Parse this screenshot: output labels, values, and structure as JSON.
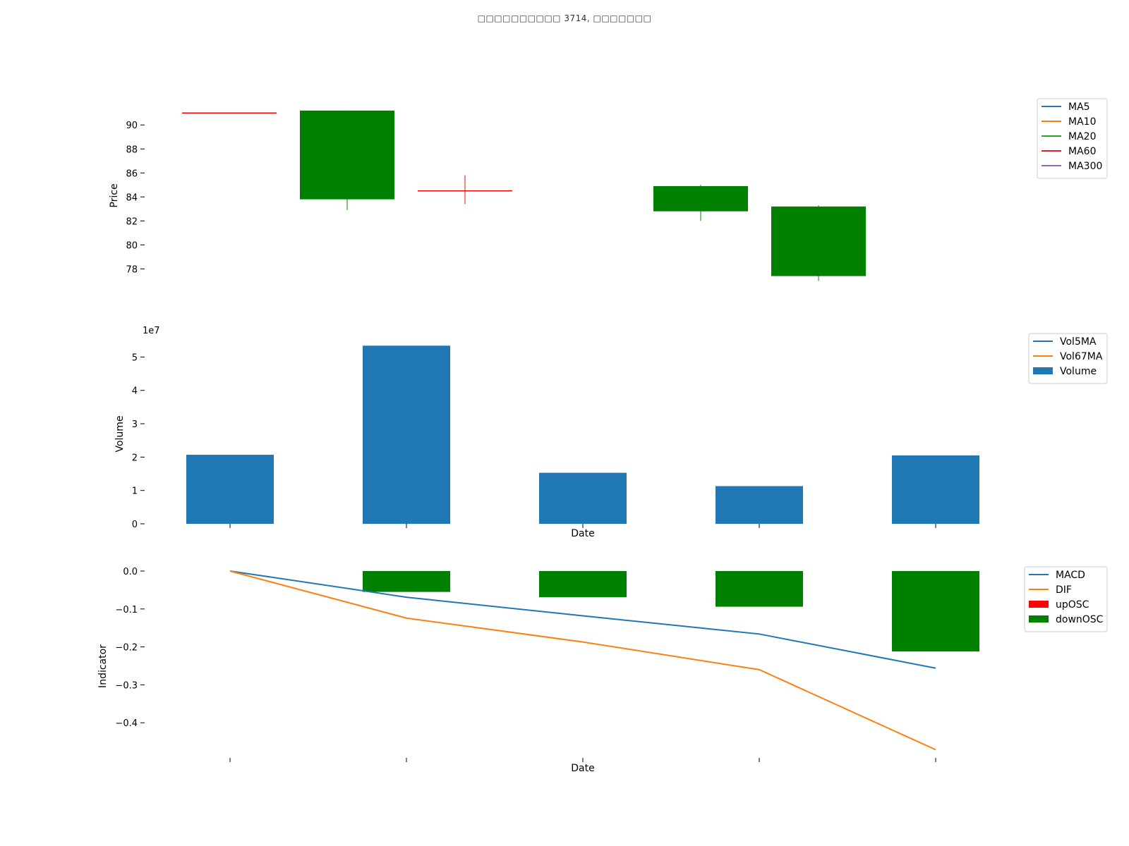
{
  "title": "□□□□□□□□□□ 3714, □□□□□□□",
  "chart_data": [
    {
      "type": "candlestick",
      "ylabel": "Price",
      "yticks": [
        78,
        80,
        82,
        84,
        86,
        88,
        90
      ],
      "ylim": [
        76.2,
        92.6
      ],
      "grid": false,
      "legend_position": "top-right",
      "legend": [
        {
          "name": "MA5",
          "color": "#1f77b4"
        },
        {
          "name": "MA10",
          "color": "#ff7f0e"
        },
        {
          "name": "MA20",
          "color": "#2ca02c"
        },
        {
          "name": "MA60",
          "color": "#d62728"
        },
        {
          "name": "MA300",
          "color": "#9467bd"
        }
      ],
      "candles": [
        {
          "open": 91.0,
          "close": 91.0,
          "high": 91.0,
          "low": 91.0,
          "color": "#ff0000"
        },
        {
          "open": 91.2,
          "close": 83.8,
          "high": 91.2,
          "low": 82.9,
          "color": "#008000"
        },
        {
          "open": 84.5,
          "close": 84.5,
          "high": 85.8,
          "low": 83.4,
          "color": "#ff0000"
        },
        {
          "open": null,
          "close": null,
          "high": null,
          "low": null,
          "color": null
        },
        {
          "open": 84.9,
          "close": 82.8,
          "high": 85.0,
          "low": 82.0,
          "color": "#008000"
        },
        {
          "open": 83.2,
          "close": 77.4,
          "high": 83.3,
          "low": 77.0,
          "color": "#008000"
        }
      ]
    },
    {
      "type": "bar",
      "ylabel": "Volume",
      "xlabel": "Date",
      "offset_text": "1e7",
      "yticks": [
        0,
        1,
        2,
        3,
        4,
        5
      ],
      "ylim": [
        0,
        5.6
      ],
      "grid": false,
      "legend_position": "top-right",
      "legend": [
        {
          "name": "Vol5MA",
          "color": "#1f77b4",
          "kind": "line"
        },
        {
          "name": "Vol67MA",
          "color": "#ff7f0e",
          "kind": "line"
        },
        {
          "name": "Volume",
          "color": "#1f77b4",
          "kind": "patch"
        }
      ],
      "values": [
        2.07,
        5.34,
        1.53,
        1.13,
        2.05
      ]
    },
    {
      "type": "line",
      "ylabel": "Indicator",
      "xlabel": "Date",
      "yticks": [
        "0.0",
        "−0.1",
        "−0.2",
        "−0.3",
        "−0.4"
      ],
      "yticks_values": [
        0.0,
        -0.1,
        -0.2,
        -0.3,
        -0.4
      ],
      "ylim": [
        -0.495,
        0.025
      ],
      "grid": false,
      "legend_position": "top-right",
      "legend": [
        {
          "name": "MACD",
          "color": "#1f77b4",
          "kind": "line"
        },
        {
          "name": "DIF",
          "color": "#ff7f0e",
          "kind": "line"
        },
        {
          "name": "upOSC",
          "color": "#ff0000",
          "kind": "patch"
        },
        {
          "name": "downOSC",
          "color": "#008000",
          "kind": "patch"
        }
      ],
      "series": [
        {
          "name": "MACD",
          "values": [
            0.0,
            -0.069,
            -0.118,
            -0.166,
            -0.256
          ]
        },
        {
          "name": "DIF",
          "values": [
            0.0,
            -0.124,
            -0.187,
            -0.26,
            -0.471
          ]
        }
      ],
      "osc": [
        0.0,
        -0.055,
        -0.069,
        -0.094,
        -0.212
      ]
    }
  ]
}
